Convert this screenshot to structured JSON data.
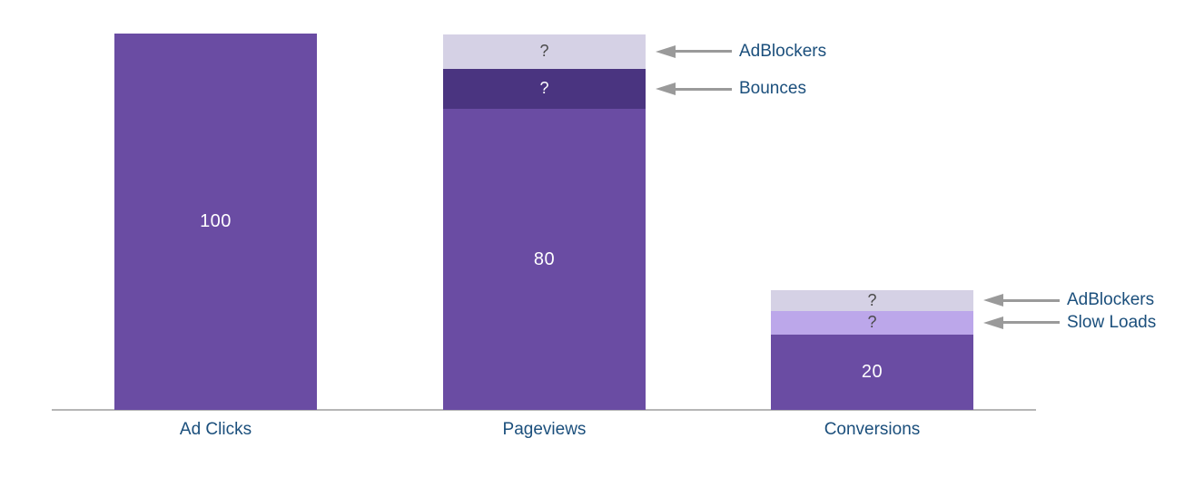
{
  "chart_data": {
    "type": "bar",
    "subtype": "stacked_funnel",
    "title": "",
    "xlabel": "",
    "ylabel": "",
    "ylim": [
      0,
      100
    ],
    "grid": false,
    "legend": "none",
    "value_labels_shown": true,
    "categories": [
      "Ad Clicks",
      "Pageviews",
      "Conversions"
    ],
    "bars": [
      {
        "category": "Ad Clicks",
        "total_shown": 100,
        "segments": [
          {
            "id": "main",
            "label": "100",
            "value": 100,
            "color_key": "primary",
            "label_color_key": "value_text",
            "label_kind": "value"
          }
        ]
      },
      {
        "category": "Pageviews",
        "total_shown": 100,
        "segments": [
          {
            "id": "main",
            "label": "80",
            "value": 80,
            "color_key": "primary",
            "label_color_key": "value_text",
            "label_kind": "value"
          },
          {
            "id": "bounces",
            "label": "?",
            "value": 10.6,
            "color_key": "dark_purple",
            "label_color_key": "value_text",
            "label_kind": "question"
          },
          {
            "id": "adblockers",
            "label": "?",
            "value": 9.2,
            "color_key": "lavender",
            "label_color_key": "question_text",
            "label_kind": "question"
          }
        ]
      },
      {
        "category": "Conversions",
        "total_shown": 31.8,
        "segments": [
          {
            "id": "main",
            "label": "20",
            "value": 20,
            "color_key": "primary",
            "label_color_key": "value_text",
            "label_kind": "value"
          },
          {
            "id": "slow-loads",
            "label": "?",
            "value": 6.3,
            "color_key": "light_purple",
            "label_color_key": "question_text",
            "label_kind": "question"
          },
          {
            "id": "adblockers",
            "label": "?",
            "value": 5.5,
            "color_key": "lavender",
            "label_color_key": "question_text",
            "label_kind": "question"
          }
        ]
      }
    ],
    "annotations": [
      {
        "text": "AdBlockers",
        "bar_index": 1,
        "segment_id": "adblockers"
      },
      {
        "text": "Bounces",
        "bar_index": 1,
        "segment_id": "bounces"
      },
      {
        "text": "AdBlockers",
        "bar_index": 2,
        "segment_id": "adblockers"
      },
      {
        "text": "Slow Loads",
        "bar_index": 2,
        "segment_id": "slow-loads"
      }
    ],
    "colors": {
      "primary": "#6a4ca3",
      "dark_purple": "#4a3480",
      "lavender": "#d5d1e5",
      "light_purple": "#bca7ea",
      "arrow": "#9a9a9a",
      "axis_line": "#b6b6b6",
      "category_text": "#1b4f7c",
      "callout_text": "#1b4f7c",
      "value_text": "#ffffff",
      "question_text": "#4a4a4a"
    }
  }
}
